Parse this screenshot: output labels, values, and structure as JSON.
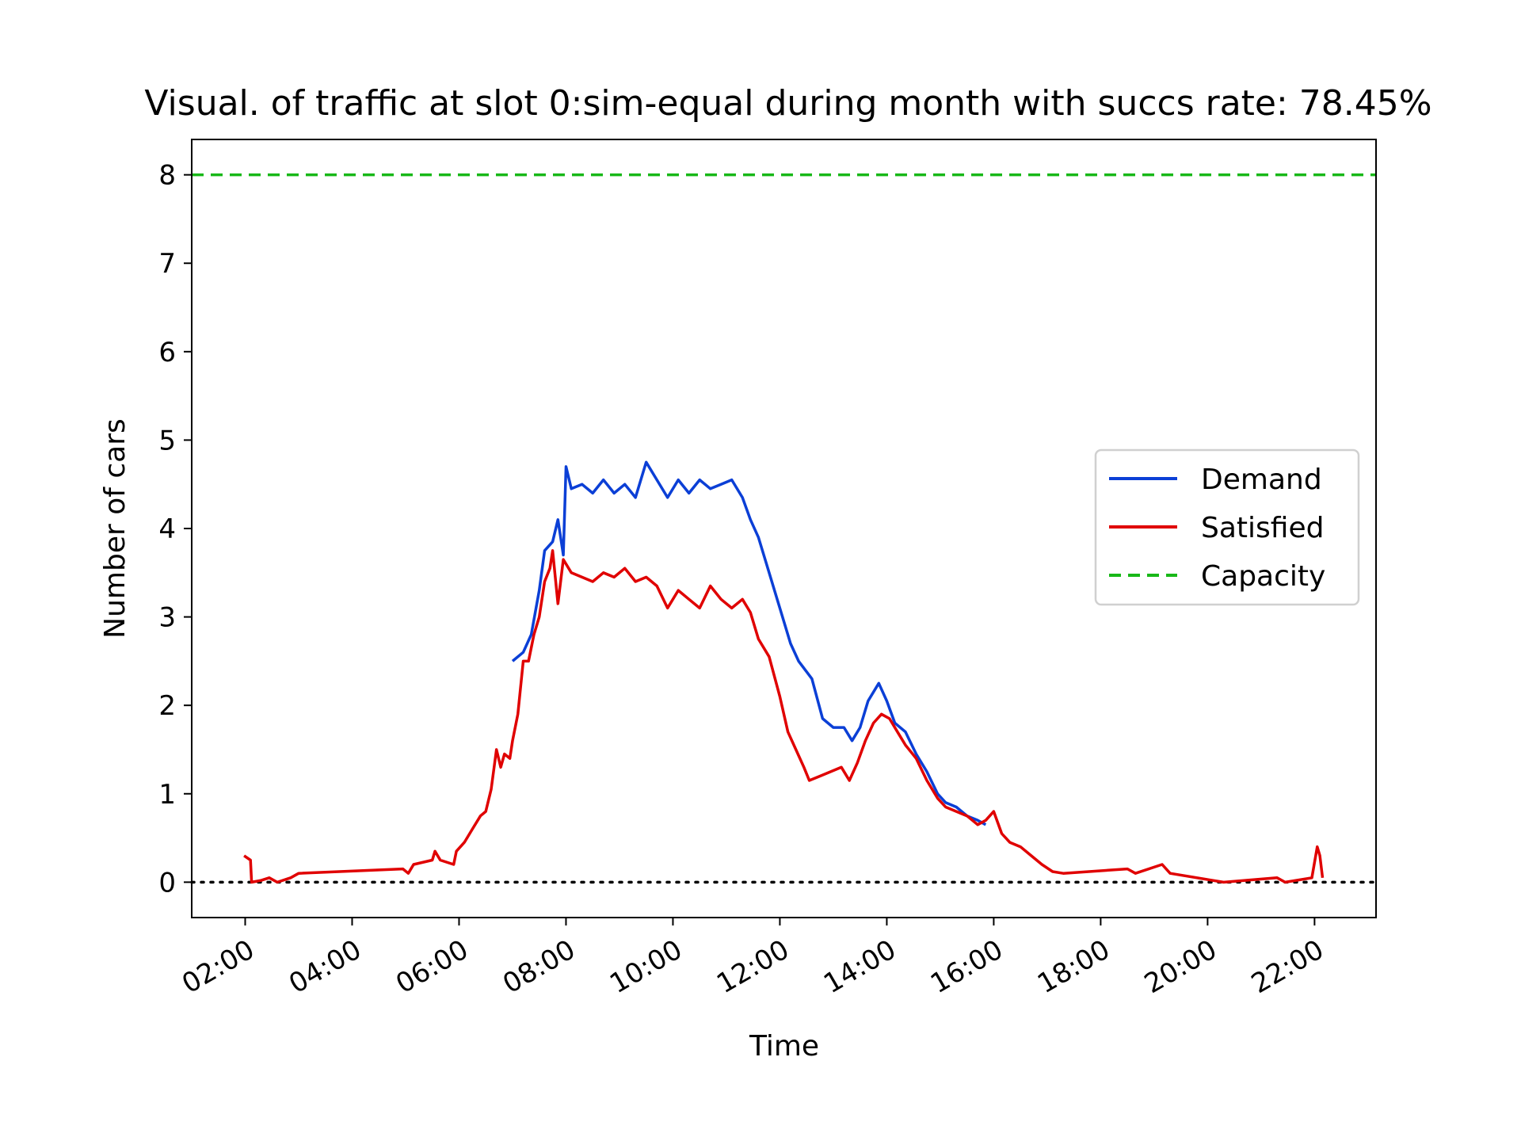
{
  "chart_data": {
    "type": "line",
    "title": "Visual. of traffic at slot 0:sim-equal during month with succs rate: 78.45%",
    "xlabel": "Time",
    "ylabel": "Number of cars",
    "x_tick_labels": [
      "02:00",
      "04:00",
      "06:00",
      "08:00",
      "10:00",
      "12:00",
      "14:00",
      "16:00",
      "18:00",
      "20:00",
      "22:00"
    ],
    "y_tick_labels": [
      "0",
      "1",
      "2",
      "3",
      "4",
      "5",
      "6",
      "7",
      "8"
    ],
    "xlim_hours": [
      1.0,
      23.15
    ],
    "ylim": [
      -0.4,
      8.4
    ],
    "grid": false,
    "legend_position": "center-right",
    "zero_line": {
      "y": 0,
      "style": "dotted",
      "color": "#000000"
    },
    "series": [
      {
        "name": "Demand",
        "color": "#0b3fd6",
        "style": "solid",
        "points": [
          [
            7.0,
            2.5
          ],
          [
            7.2,
            2.6
          ],
          [
            7.35,
            2.8
          ],
          [
            7.5,
            3.3
          ],
          [
            7.6,
            3.75
          ],
          [
            7.75,
            3.85
          ],
          [
            7.85,
            4.1
          ],
          [
            7.95,
            3.7
          ],
          [
            8.0,
            4.7
          ],
          [
            8.1,
            4.45
          ],
          [
            8.3,
            4.5
          ],
          [
            8.5,
            4.4
          ],
          [
            8.7,
            4.55
          ],
          [
            8.9,
            4.4
          ],
          [
            9.1,
            4.5
          ],
          [
            9.3,
            4.35
          ],
          [
            9.5,
            4.75
          ],
          [
            9.7,
            4.55
          ],
          [
            9.9,
            4.35
          ],
          [
            10.1,
            4.55
          ],
          [
            10.3,
            4.4
          ],
          [
            10.5,
            4.55
          ],
          [
            10.7,
            4.45
          ],
          [
            10.9,
            4.5
          ],
          [
            11.1,
            4.55
          ],
          [
            11.3,
            4.35
          ],
          [
            11.45,
            4.1
          ],
          [
            11.6,
            3.9
          ],
          [
            11.8,
            3.5
          ],
          [
            12.0,
            3.1
          ],
          [
            12.2,
            2.7
          ],
          [
            12.35,
            2.5
          ],
          [
            12.6,
            2.3
          ],
          [
            12.8,
            1.85
          ],
          [
            13.0,
            1.75
          ],
          [
            13.2,
            1.75
          ],
          [
            13.35,
            1.6
          ],
          [
            13.5,
            1.75
          ],
          [
            13.65,
            2.05
          ],
          [
            13.85,
            2.25
          ],
          [
            14.0,
            2.05
          ],
          [
            14.15,
            1.8
          ],
          [
            14.35,
            1.7
          ],
          [
            14.55,
            1.45
          ],
          [
            14.75,
            1.25
          ],
          [
            14.95,
            1.0
          ],
          [
            15.1,
            0.9
          ],
          [
            15.3,
            0.85
          ],
          [
            15.5,
            0.75
          ],
          [
            15.7,
            0.7
          ],
          [
            15.85,
            0.65
          ]
        ]
      },
      {
        "name": "Satisfied",
        "color": "#e00000",
        "style": "solid",
        "points": [
          [
            1.98,
            0.3
          ],
          [
            2.1,
            0.25
          ],
          [
            2.12,
            0.0
          ],
          [
            2.3,
            0.02
          ],
          [
            2.45,
            0.05
          ],
          [
            2.6,
            0.0
          ],
          [
            2.85,
            0.05
          ],
          [
            3.0,
            0.1
          ],
          [
            4.95,
            0.15
          ],
          [
            5.05,
            0.1
          ],
          [
            5.15,
            0.2
          ],
          [
            5.5,
            0.25
          ],
          [
            5.55,
            0.35
          ],
          [
            5.65,
            0.25
          ],
          [
            5.9,
            0.2
          ],
          [
            5.95,
            0.35
          ],
          [
            6.1,
            0.45
          ],
          [
            6.25,
            0.6
          ],
          [
            6.4,
            0.75
          ],
          [
            6.5,
            0.8
          ],
          [
            6.6,
            1.05
          ],
          [
            6.7,
            1.5
          ],
          [
            6.78,
            1.3
          ],
          [
            6.85,
            1.45
          ],
          [
            6.95,
            1.4
          ],
          [
            7.0,
            1.6
          ],
          [
            7.1,
            1.9
          ],
          [
            7.2,
            2.5
          ],
          [
            7.3,
            2.5
          ],
          [
            7.4,
            2.8
          ],
          [
            7.5,
            3.0
          ],
          [
            7.6,
            3.4
          ],
          [
            7.7,
            3.55
          ],
          [
            7.75,
            3.75
          ],
          [
            7.85,
            3.15
          ],
          [
            7.95,
            3.65
          ],
          [
            8.1,
            3.5
          ],
          [
            8.3,
            3.45
          ],
          [
            8.5,
            3.4
          ],
          [
            8.7,
            3.5
          ],
          [
            8.9,
            3.45
          ],
          [
            9.1,
            3.55
          ],
          [
            9.3,
            3.4
          ],
          [
            9.5,
            3.45
          ],
          [
            9.7,
            3.35
          ],
          [
            9.9,
            3.1
          ],
          [
            10.1,
            3.3
          ],
          [
            10.3,
            3.2
          ],
          [
            10.5,
            3.1
          ],
          [
            10.7,
            3.35
          ],
          [
            10.9,
            3.2
          ],
          [
            11.1,
            3.1
          ],
          [
            11.3,
            3.2
          ],
          [
            11.45,
            3.05
          ],
          [
            11.6,
            2.75
          ],
          [
            11.8,
            2.55
          ],
          [
            12.0,
            2.1
          ],
          [
            12.15,
            1.7
          ],
          [
            12.3,
            1.5
          ],
          [
            12.45,
            1.3
          ],
          [
            12.55,
            1.15
          ],
          [
            12.75,
            1.2
          ],
          [
            12.95,
            1.25
          ],
          [
            13.15,
            1.3
          ],
          [
            13.3,
            1.15
          ],
          [
            13.45,
            1.35
          ],
          [
            13.6,
            1.6
          ],
          [
            13.75,
            1.8
          ],
          [
            13.9,
            1.9
          ],
          [
            14.05,
            1.85
          ],
          [
            14.2,
            1.7
          ],
          [
            14.35,
            1.55
          ],
          [
            14.55,
            1.4
          ],
          [
            14.75,
            1.15
          ],
          [
            14.95,
            0.95
          ],
          [
            15.1,
            0.85
          ],
          [
            15.3,
            0.8
          ],
          [
            15.5,
            0.75
          ],
          [
            15.7,
            0.65
          ],
          [
            15.85,
            0.7
          ],
          [
            16.0,
            0.8
          ],
          [
            16.15,
            0.55
          ],
          [
            16.3,
            0.45
          ],
          [
            16.5,
            0.4
          ],
          [
            16.7,
            0.3
          ],
          [
            16.9,
            0.2
          ],
          [
            17.1,
            0.12
          ],
          [
            17.3,
            0.1
          ],
          [
            18.5,
            0.15
          ],
          [
            18.65,
            0.1
          ],
          [
            19.15,
            0.2
          ],
          [
            19.3,
            0.1
          ],
          [
            20.3,
            0.0
          ],
          [
            21.3,
            0.05
          ],
          [
            21.45,
            0.0
          ],
          [
            21.95,
            0.05
          ],
          [
            22.05,
            0.4
          ],
          [
            22.1,
            0.3
          ],
          [
            22.15,
            0.05
          ]
        ]
      },
      {
        "name": "Capacity",
        "color": "#18b818",
        "style": "dashed",
        "points": [
          [
            1.0,
            8.0
          ],
          [
            23.15,
            8.0
          ]
        ]
      }
    ]
  }
}
